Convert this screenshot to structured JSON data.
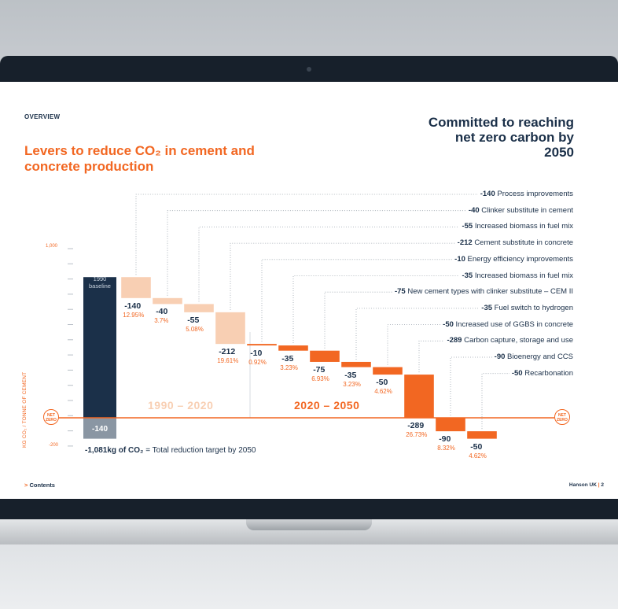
{
  "header": {
    "section": "OVERVIEW",
    "title": "Levers to reduce CO₂ in cement and concrete production",
    "commitment": "Committed to reaching net zero carbon by 2050"
  },
  "footer": {
    "contents_arrow": ">",
    "contents_label": "Contents",
    "brand": "Hanson UK",
    "separator": "|",
    "page": "2"
  },
  "net_zero_badge": "NET ZERO",
  "total_line": {
    "value": "-1,081kg of CO₂",
    "text": " = Total reduction target by 2050"
  },
  "chart_data": {
    "type": "waterfall",
    "ylabel": "KG CO₂ / TONNE OF CEMENT",
    "yticks": [
      "1,000",
      "-200"
    ],
    "ylim": [
      -200,
      1000
    ],
    "baseline": {
      "value": "941",
      "label": "1990 baseline",
      "remaining": "-140"
    },
    "periods": [
      {
        "label": "1990 – 2020",
        "color": "#f8cfb3"
      },
      {
        "label": "2020 – 2050",
        "color": "#f26722"
      }
    ],
    "steps": [
      {
        "value": -140,
        "display": "-140",
        "pct": "12.95%",
        "label": "Process improvements",
        "period": 0
      },
      {
        "value": -40,
        "display": "-40",
        "pct": "3.7%",
        "label": "Clinker substitute in cement",
        "period": 0
      },
      {
        "value": -55,
        "display": "-55",
        "pct": "5.08%",
        "label": "Increased biomass in fuel mix",
        "period": 0
      },
      {
        "value": -212,
        "display": "-212",
        "pct": "19.61%",
        "label": "Cement substitute in concrete",
        "period": 0
      },
      {
        "value": -10,
        "display": "-10",
        "pct": "0.92%",
        "label": "Energy efficiency improvements",
        "period": 1
      },
      {
        "value": -35,
        "display": "-35",
        "pct": "3.23%",
        "label": "Increased biomass in fuel mix",
        "period": 1
      },
      {
        "value": -75,
        "display": "-75",
        "pct": "6.93%",
        "label": "New cement types with clinker substitute – CEM II",
        "period": 1
      },
      {
        "value": -35,
        "display": "-35",
        "pct": "3.23%",
        "label": "Fuel switch to hydrogen",
        "period": 1
      },
      {
        "value": -50,
        "display": "-50",
        "pct": "4.62%",
        "label": "Increased use of GGBS in concrete",
        "period": 1
      },
      {
        "value": -289,
        "display": "-289",
        "pct": "26.73%",
        "label": "Carbon capture, storage and use",
        "period": 1
      },
      {
        "value": -90,
        "display": "-90",
        "pct": "8.32%",
        "label": "Bioenergy and CCS",
        "period": 1
      },
      {
        "value": -50,
        "display": "-50",
        "pct": "4.62%",
        "label": "Recarbonation",
        "period": 1
      }
    ]
  },
  "colors": {
    "navy": "#1b3049",
    "orange": "#f26722",
    "light_orange": "#f8cfb3",
    "grey_bar": "#8a96a3"
  }
}
